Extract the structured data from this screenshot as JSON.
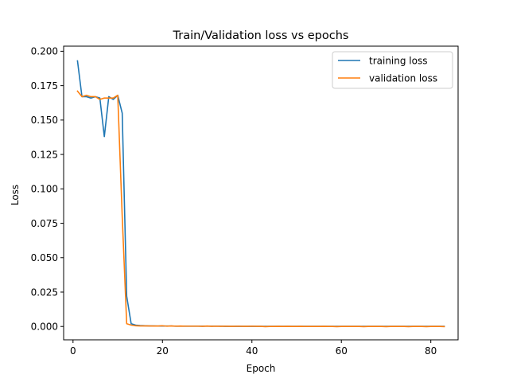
{
  "chart_data": {
    "type": "line",
    "title": "Train/Validation loss vs epochs",
    "xlabel": "Epoch",
    "ylabel": "Loss",
    "xlim": [
      -2.1,
      86.1
    ],
    "ylim": [
      -0.0097,
      0.2037
    ],
    "xticks": [
      0,
      20,
      40,
      60,
      80
    ],
    "yticks": [
      0.0,
      0.025,
      0.05,
      0.075,
      0.1,
      0.125,
      0.15,
      0.175,
      0.2
    ],
    "ytick_labels": [
      "0.000",
      "0.025",
      "0.050",
      "0.075",
      "0.100",
      "0.125",
      "0.150",
      "0.175",
      "0.200"
    ],
    "grid": false,
    "legend_position": "top-right",
    "x": [
      1,
      2,
      3,
      4,
      5,
      6,
      7,
      8,
      9,
      10,
      11,
      12,
      13,
      14,
      15,
      16,
      17,
      18,
      19,
      20,
      21,
      22,
      23,
      24,
      25,
      26,
      27,
      28,
      29,
      30,
      31,
      32,
      33,
      34,
      35,
      36,
      37,
      38,
      39,
      40,
      41,
      42,
      43,
      44,
      45,
      46,
      47,
      48,
      49,
      50,
      51,
      52,
      53,
      54,
      55,
      56,
      57,
      58,
      59,
      60,
      61,
      62,
      63,
      64,
      65,
      66,
      67,
      68,
      69,
      70,
      71,
      72,
      73,
      74,
      75,
      76,
      77,
      78,
      79,
      80,
      81,
      82,
      83
    ],
    "series": [
      {
        "name": "training loss",
        "color": "#1f77b4",
        "values": [
          0.193,
          0.167,
          0.167,
          0.166,
          0.167,
          0.166,
          0.138,
          0.167,
          0.165,
          0.168,
          0.155,
          0.022,
          0.002,
          0.001,
          0.0007,
          0.0005,
          0.0004,
          0.0004,
          0.0003,
          0.0003,
          0.0003,
          0.0003,
          0.0002,
          0.0002,
          0.0002,
          0.0002,
          0.0002,
          0.0002,
          0.0002,
          0.0002,
          0.0002,
          0.0002,
          0.0002,
          0.0001,
          0.0001,
          0.0001,
          0.0001,
          0.0001,
          0.0001,
          0.0001,
          0.0001,
          0.0001,
          0.0001,
          0.0001,
          0.0001,
          0.0001,
          0.0001,
          0.0001,
          0.0001,
          0.0001,
          0.0001,
          0.0001,
          0.0001,
          0.0001,
          0.0001,
          0.0001,
          0.0001,
          0.0001,
          0.0001,
          0.0001,
          0.0001,
          0.0001,
          0.0001,
          0.0001,
          0.0001,
          0.0001,
          0.0001,
          0.0001,
          0.0001,
          0.0001,
          0.0001,
          0.0001,
          0.0001,
          0.0001,
          0.0001,
          0.0001,
          0.0001,
          0.0001,
          0.0001,
          0.0001,
          0.0001,
          0.0001,
          0.0001
        ]
      },
      {
        "name": "validation loss",
        "color": "#ff7f0e",
        "values": [
          0.171,
          0.167,
          0.168,
          0.167,
          0.167,
          0.165,
          0.166,
          0.166,
          0.166,
          0.168,
          0.08,
          0.002,
          0.001,
          0.0005,
          0.0004,
          0.0004,
          0.0004,
          0.0003,
          0.0003,
          0.0005,
          0.0002,
          0.0004,
          0.0002,
          0.0003,
          0.0002,
          0.0002,
          0.0002,
          0.0002,
          0.0001,
          0.0003,
          0.0001,
          0.0002,
          0.0001,
          0.0002,
          0.0001,
          0.0001,
          0.0002,
          0.0001,
          0.0001,
          0.0002,
          0.0001,
          0.0001,
          -0.0001,
          0.0,
          0.0,
          0.0001,
          0.0,
          0.0001,
          0.0,
          0.0,
          0.0001,
          0.0,
          0.0,
          0.0,
          0.0,
          0.0001,
          0.0,
          0.0,
          -0.0001,
          0.0,
          0.0,
          0.0,
          0.0,
          0.0,
          -0.0001,
          0.0,
          0.0,
          0.0,
          0.0,
          -0.0001,
          0.0,
          0.0,
          0.0,
          0.0,
          -0.0001,
          0.0,
          0.0,
          0.0,
          -0.0001,
          0.0,
          0.0,
          0.0,
          -0.0001
        ]
      }
    ]
  }
}
